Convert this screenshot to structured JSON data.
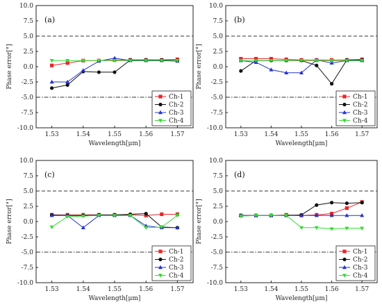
{
  "figure": {
    "ylabel": "Phase error[°]",
    "xlabel": "Wavelength[μm]"
  },
  "chart_data": [
    {
      "type": "line",
      "panel_label": "(a)",
      "xlabel": "Wavelength[μm]",
      "ylabel": "Phase error[°]",
      "x": [
        1.53,
        1.535,
        1.54,
        1.545,
        1.55,
        1.555,
        1.56,
        1.565,
        1.57
      ],
      "xlim": [
        1.525,
        1.575
      ],
      "ylim": [
        -10,
        10
      ],
      "xticks": [
        "1.53",
        "1.54",
        "1.55",
        "1.56",
        "1.57"
      ],
      "yticks": [
        "-10.0",
        "-7.5",
        "-5.0",
        "-2.5",
        "0.0",
        "2.5",
        "5.0",
        "7.5",
        "10.0"
      ],
      "ref_lines": [
        5,
        -5
      ],
      "legend_position": "lower-right",
      "series": [
        {
          "name": "Ch-1",
          "color": "#e8262a",
          "marker": "square",
          "values": [
            0.2,
            0.6,
            1.0,
            1.0,
            1.1,
            1.1,
            1.1,
            1.1,
            1.2
          ]
        },
        {
          "name": "Ch-2",
          "color": "#111111",
          "marker": "circle",
          "values": [
            -3.5,
            -3.0,
            -0.8,
            -0.9,
            -0.9,
            1.1,
            1.1,
            1.1,
            1.0
          ]
        },
        {
          "name": "Ch-3",
          "color": "#2233cc",
          "marker": "triangle-up",
          "values": [
            -2.5,
            -2.5,
            -0.6,
            0.9,
            1.4,
            1.0,
            1.0,
            1.0,
            0.9
          ]
        },
        {
          "name": "Ch-4",
          "color": "#33dd33",
          "marker": "triangle-down",
          "values": [
            1.0,
            1.0,
            1.0,
            1.0,
            1.0,
            1.0,
            1.0,
            1.0,
            1.0
          ]
        }
      ]
    },
    {
      "type": "line",
      "panel_label": "(b)",
      "xlabel": "Wavelength[μm]",
      "ylabel": "Phase error[°]",
      "x": [
        1.53,
        1.535,
        1.54,
        1.545,
        1.55,
        1.555,
        1.56,
        1.565,
        1.57
      ],
      "xlim": [
        1.525,
        1.575
      ],
      "ylim": [
        -10,
        10
      ],
      "xticks": [
        "1.53",
        "1.54",
        "1.55",
        "1.56",
        "1.57"
      ],
      "yticks": [
        "-10.0",
        "-7.5",
        "-5.0",
        "-2.5",
        "0.0",
        "2.5",
        "5.0",
        "7.5",
        "10.0"
      ],
      "ref_lines": [
        5,
        -5
      ],
      "legend_position": "lower-right",
      "series": [
        {
          "name": "Ch-1",
          "color": "#e8262a",
          "marker": "square",
          "values": [
            1.3,
            1.3,
            1.3,
            1.2,
            1.1,
            1.1,
            1.1,
            1.1,
            1.2
          ]
        },
        {
          "name": "Ch-2",
          "color": "#111111",
          "marker": "circle",
          "values": [
            -0.7,
            1.0,
            1.0,
            1.0,
            1.0,
            0.2,
            -2.8,
            1.1,
            1.1
          ]
        },
        {
          "name": "Ch-3",
          "color": "#2233cc",
          "marker": "triangle-up",
          "values": [
            1.0,
            0.7,
            -0.5,
            -1.0,
            -1.0,
            1.1,
            0.6,
            1.0,
            1.0
          ]
        },
        {
          "name": "Ch-4",
          "color": "#33dd33",
          "marker": "triangle-down",
          "values": [
            1.0,
            1.0,
            1.0,
            1.0,
            1.0,
            1.0,
            1.0,
            1.0,
            1.0
          ]
        }
      ]
    },
    {
      "type": "line",
      "panel_label": "(c)",
      "xlabel": "Wavelength[μm]",
      "ylabel": "Phase error[°]",
      "x": [
        1.53,
        1.535,
        1.54,
        1.545,
        1.55,
        1.555,
        1.56,
        1.565,
        1.57
      ],
      "xlim": [
        1.525,
        1.575
      ],
      "ylim": [
        -10,
        10
      ],
      "xticks": [
        "1.53",
        "1.54",
        "1.55",
        "1.56",
        "1.57"
      ],
      "yticks": [
        "-10.0",
        "-7.5",
        "-5.0",
        "-2.5",
        "0.0",
        "2.5",
        "5.0",
        "7.5",
        "10.0"
      ],
      "ref_lines": [
        5,
        -5
      ],
      "legend_position": "lower-right",
      "series": [
        {
          "name": "Ch-1",
          "color": "#e8262a",
          "marker": "square",
          "values": [
            1.1,
            1.1,
            1.1,
            1.1,
            1.1,
            1.1,
            1.0,
            1.2,
            1.2
          ]
        },
        {
          "name": "Ch-2",
          "color": "#111111",
          "marker": "circle",
          "values": [
            1.1,
            1.0,
            1.0,
            1.1,
            1.1,
            1.2,
            1.3,
            -0.9,
            -1.0
          ]
        },
        {
          "name": "Ch-3",
          "color": "#2233cc",
          "marker": "triangle-up",
          "values": [
            1.0,
            1.0,
            -1.0,
            1.0,
            1.0,
            1.0,
            -0.7,
            -1.0,
            -1.0
          ]
        },
        {
          "name": "Ch-4",
          "color": "#33dd33",
          "marker": "triangle-down",
          "values": [
            -0.9,
            0.8,
            0.9,
            1.0,
            1.0,
            1.0,
            -1.0,
            -0.9,
            1.0
          ]
        }
      ]
    },
    {
      "type": "line",
      "panel_label": "(d)",
      "xlabel": "Wavelength[μm]",
      "ylabel": "Phase error[°]",
      "x": [
        1.53,
        1.535,
        1.54,
        1.545,
        1.55,
        1.555,
        1.56,
        1.565,
        1.57
      ],
      "xlim": [
        1.525,
        1.575
      ],
      "ylim": [
        -10,
        10
      ],
      "xticks": [
        "1.53",
        "1.54",
        "1.55",
        "1.56",
        "1.57"
      ],
      "yticks": [
        "-10.0",
        "-7.5",
        "-5.0",
        "-2.5",
        "0.0",
        "2.5",
        "5.0",
        "7.5",
        "10.0"
      ],
      "ref_lines": [
        5,
        -5
      ],
      "legend_position": "lower-right",
      "series": [
        {
          "name": "Ch-1",
          "color": "#e8262a",
          "marker": "square",
          "values": [
            1.0,
            1.0,
            1.0,
            1.1,
            1.0,
            1.1,
            1.3,
            2.2,
            3.2
          ]
        },
        {
          "name": "Ch-2",
          "color": "#111111",
          "marker": "circle",
          "values": [
            1.0,
            1.0,
            1.0,
            1.0,
            1.1,
            2.7,
            3.1,
            3.0,
            3.1
          ]
        },
        {
          "name": "Ch-3",
          "color": "#2233cc",
          "marker": "triangle-up",
          "values": [
            1.0,
            1.0,
            1.0,
            1.0,
            1.0,
            1.0,
            1.0,
            1.0,
            1.0
          ]
        },
        {
          "name": "Ch-4",
          "color": "#33dd33",
          "marker": "triangle-down",
          "values": [
            0.9,
            1.0,
            1.0,
            1.0,
            -1.0,
            -1.0,
            -1.2,
            -1.1,
            -1.1
          ]
        }
      ]
    }
  ]
}
